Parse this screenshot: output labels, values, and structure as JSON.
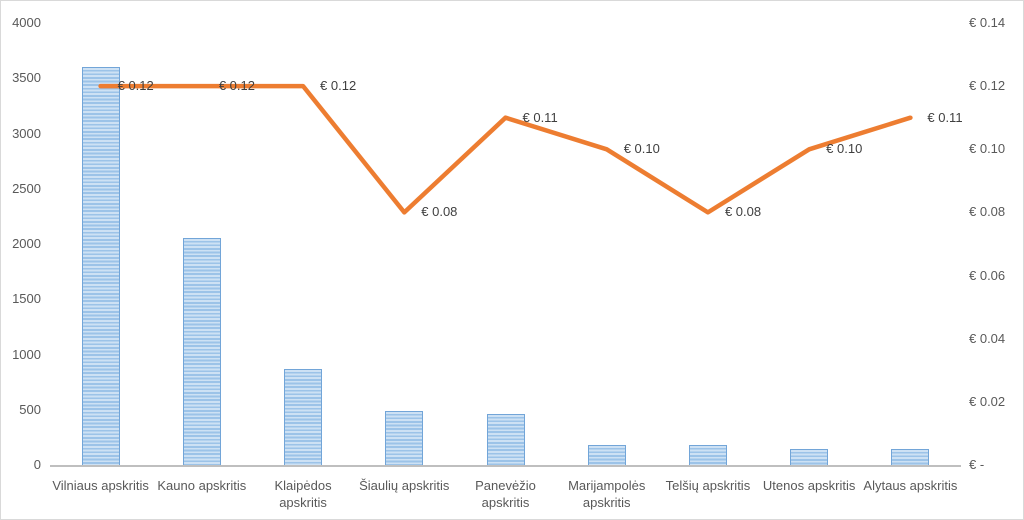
{
  "chart_data": {
    "type": "combo-bar-line",
    "categories": [
      "Vilniaus apskritis",
      "Kauno apskritis",
      "Klaipėdos\napskritis",
      "Šiaulių apskritis",
      "Panevėžio\napskritis",
      "Marijampolės\napskritis",
      "Telšių apskritis",
      "Utenos apskritis",
      "Alytaus apskritis"
    ],
    "series": [
      {
        "name": "bar-series",
        "type": "bar",
        "axis": "left",
        "values": [
          3600,
          2050,
          870,
          490,
          460,
          180,
          180,
          145,
          145
        ]
      },
      {
        "name": "line-series",
        "type": "line",
        "axis": "right",
        "values": [
          0.12,
          0.12,
          0.12,
          0.08,
          0.11,
          0.1,
          0.08,
          0.1,
          0.11
        ],
        "labels": [
          "€ 0.12",
          "€ 0.12",
          "€ 0.12",
          "€ 0.08",
          "€ 0.11",
          "€ 0.10",
          "€ 0.08",
          "€ 0.10",
          "€ 0.11"
        ]
      }
    ],
    "left_axis": {
      "min": 0,
      "max": 4000,
      "ticks": [
        "4000",
        "3500",
        "3000",
        "2500",
        "2000",
        "1500",
        "1000",
        "500",
        "0"
      ]
    },
    "right_axis": {
      "min": 0,
      "max": 0.14,
      "ticks": [
        "€ 0.14",
        "€ 0.12",
        "€ 0.10",
        "€ 0.08",
        "€ 0.06",
        "€ 0.04",
        "€ 0.02",
        "€ -"
      ]
    },
    "grid": "off",
    "legend": "none",
    "title": "",
    "colors": {
      "line": "#ED7D31",
      "bar_light": "#CDE1F4",
      "bar_dark": "#9CC3E8",
      "bar_border": "#72A5D8",
      "axis_text": "#595959",
      "label_text": "#3F3F3F",
      "axis_line": "#BFBFBF",
      "frame": "#D9D9D9"
    }
  }
}
